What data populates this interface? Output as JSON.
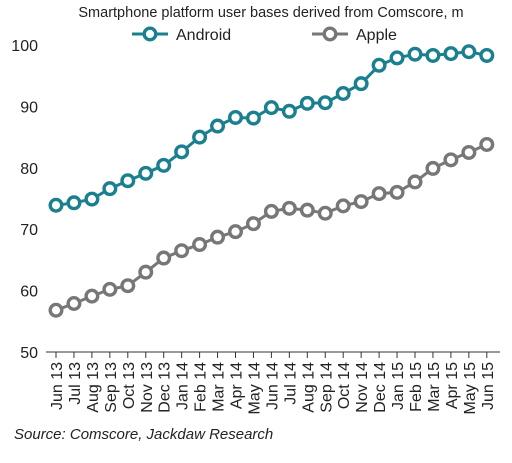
{
  "chart_data": {
    "type": "line",
    "title": "Smartphone platform user bases derived from Comscore, m",
    "xlabel": "",
    "ylabel": "",
    "ylim": [
      50,
      100
    ],
    "yticks": [
      50,
      60,
      70,
      80,
      90,
      100
    ],
    "legend_position": "top",
    "grid": false,
    "categories": [
      "Jun 13",
      "Jul 13",
      "Aug 13",
      "Sep 13",
      "Oct 13",
      "Nov 13",
      "Dec 13",
      "Jan 14",
      "Feb 14",
      "Mar 14",
      "Apr 14",
      "May 14",
      "Jun 14",
      "Jul 14",
      "Aug 14",
      "Sep 14",
      "Oct 14",
      "Nov 14",
      "Dec 14",
      "Jan 15",
      "Feb 15",
      "Mar 15",
      "Apr 15",
      "May 15",
      "Jun 15"
    ],
    "series": [
      {
        "name": "Android",
        "color": "#1a7f8e",
        "values": [
          73.9,
          74.3,
          74.9,
          76.6,
          77.9,
          79.1,
          80.4,
          82.6,
          85.0,
          86.8,
          88.2,
          88.1,
          89.8,
          89.2,
          90.5,
          90.6,
          92.1,
          93.7,
          96.7,
          97.9,
          98.5,
          98.3,
          98.6,
          98.9,
          98.3
        ]
      },
      {
        "name": "Apple",
        "color": "#777777",
        "values": [
          56.8,
          57.9,
          59.1,
          60.2,
          60.8,
          63.0,
          65.3,
          66.5,
          67.5,
          68.7,
          69.6,
          70.9,
          72.9,
          73.4,
          73.1,
          72.6,
          73.8,
          74.5,
          75.8,
          76.0,
          77.7,
          79.9,
          81.3,
          82.5,
          83.8
        ]
      }
    ]
  },
  "source": "Source: Comscore, Jackdaw Research"
}
